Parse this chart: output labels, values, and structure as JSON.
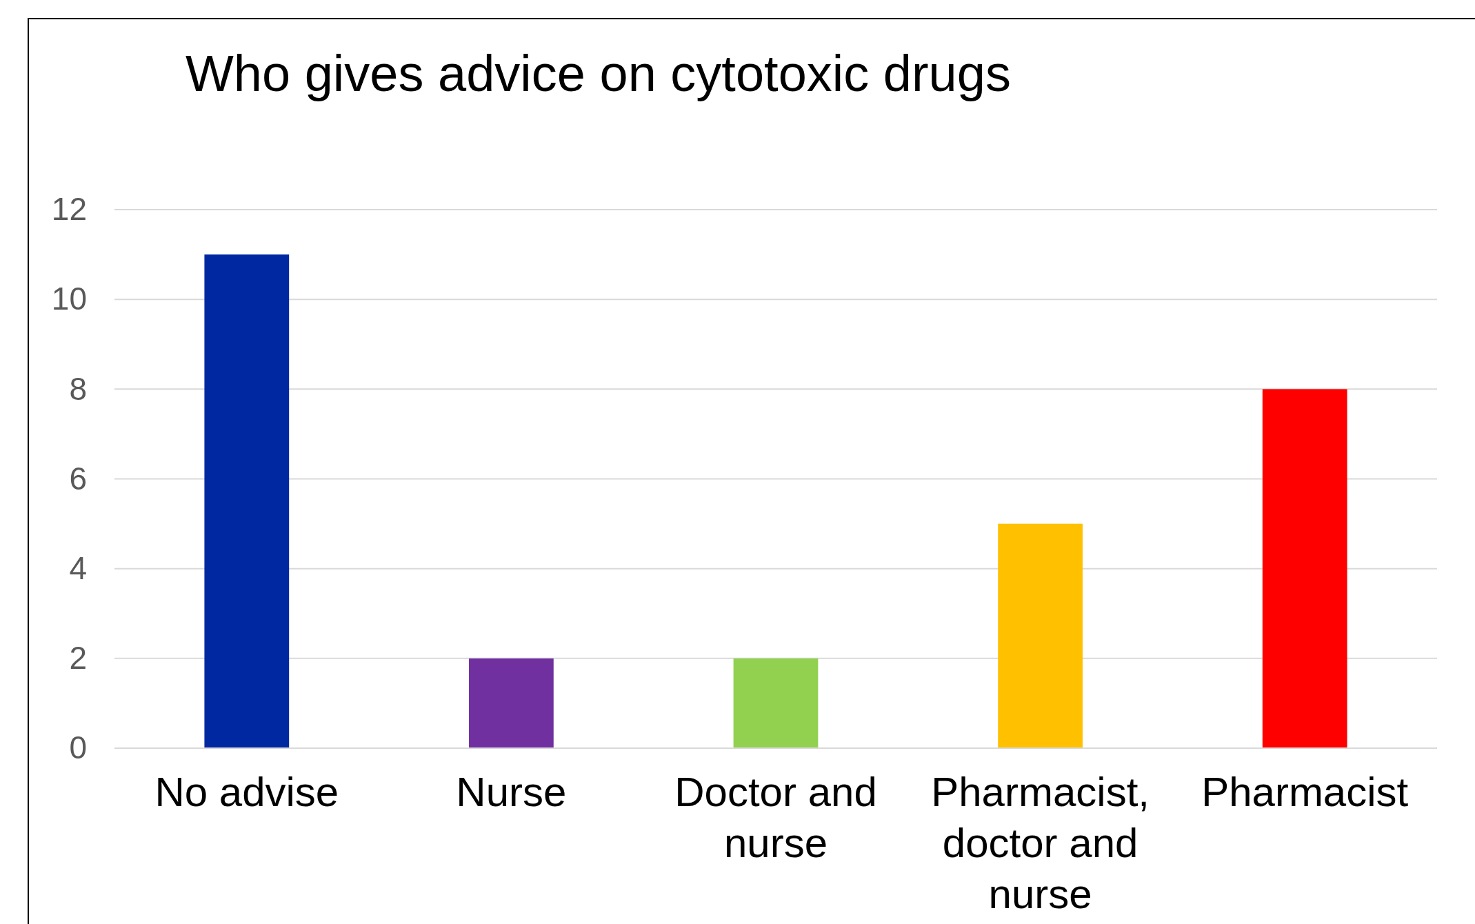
{
  "chart_data": {
    "type": "bar",
    "title": "Who gives advice on cytotoxic drugs",
    "categories": [
      "No advise",
      "Nurse",
      "Doctor and nurse",
      "Pharmacist, doctor and nurse",
      "Pharmacist"
    ],
    "values": [
      11,
      2,
      2,
      5,
      8
    ],
    "colors": [
      "#0028a0",
      "#7030a0",
      "#92d050",
      "#ffc000",
      "#ff0000"
    ],
    "ylim": [
      0,
      12
    ],
    "yticks": [
      0,
      2,
      4,
      6,
      8,
      10,
      12
    ],
    "grid": "y"
  }
}
